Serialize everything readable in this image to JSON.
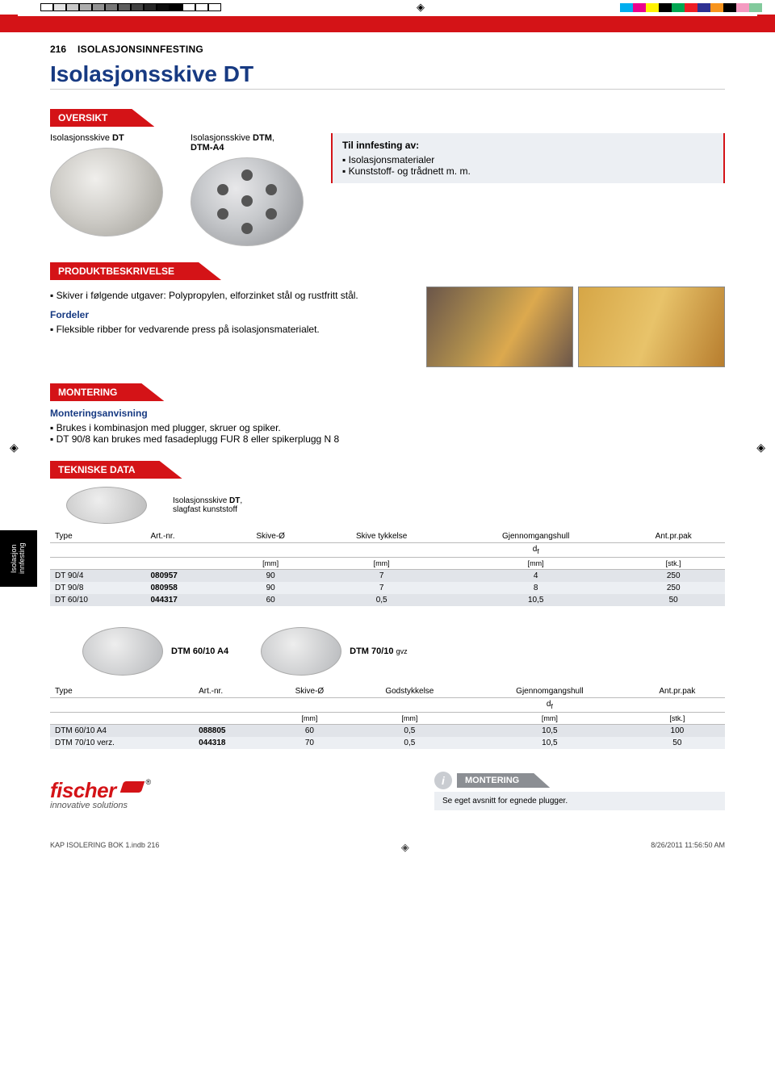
{
  "reg_swatches_gray": [
    "#ffffff",
    "#e3e3e3",
    "#c8c8c8",
    "#adadad",
    "#929292",
    "#777777",
    "#5c5c5c",
    "#414141",
    "#262626",
    "#0b0b0b",
    "#000000",
    "#ffffff",
    "#ffffff",
    "#ffffff"
  ],
  "reg_swatches_color": [
    "#00aeef",
    "#ec008c",
    "#fff200",
    "#000000",
    "#00a651",
    "#ed1c24",
    "#2e3192",
    "#f7941e",
    "#000000",
    "#f49ac1",
    "#82ca9c",
    "#ffffff"
  ],
  "page": {
    "num": "216",
    "cat": "ISOLASJONSINNFESTING"
  },
  "title": "Isolasjonsskive DT",
  "oversikt": {
    "heading": "OVERSIKT",
    "col1_label_a": "Isolasjonsskive ",
    "col1_label_b": "DT",
    "col2_label_a": "Isolasjonsskive ",
    "col2_label_b": "DTM",
    "col2_label_c": ",",
    "col2_line2": "DTM-A4",
    "info_title": "Til innfesting av:",
    "info_items": [
      "Isolasjonsmaterialer",
      "Kunststoff- og trådnett m. m."
    ]
  },
  "prodbesk": {
    "heading": "PRODUKTBESKRIVELSE",
    "items": [
      "Skiver i følgende utgaver: Polypropylen, elforzinket stål og rustfritt stål."
    ],
    "fordeler_title": "Fordeler",
    "fordeler_items": [
      "Fleksible ribber for vedvarende press på isolasjonsmaterialet."
    ]
  },
  "montering": {
    "heading": "MONTERING",
    "sub": "Monteringsanvisning",
    "items": [
      "Brukes i kombinasjon med plugger, skruer og spiker.",
      "DT 90/8 kan brukes med fasadeplugg FUR 8 eller spikerplugg N 8"
    ]
  },
  "teknisk": {
    "heading": "TEKNISKE DATA",
    "caption_a": "Isolasjonsskive ",
    "caption_b": "DT",
    "caption_c": ",",
    "caption_line2": "slagfast kunststoff"
  },
  "sidetab": "Isolasjon innfesting",
  "table1": {
    "columns": [
      "Type",
      "Art.-nr.",
      "Skive-Ø",
      "Skive tykkelse",
      "Gjennomgangshull",
      "Ant.pr.pak"
    ],
    "sub": [
      "",
      "",
      "",
      "",
      "d_f",
      ""
    ],
    "units": [
      "",
      "",
      "[mm]",
      "[mm]",
      "[mm]",
      "[stk.]"
    ],
    "rows": [
      [
        "DT 90/4",
        "080957",
        "90",
        "7",
        "4",
        "250"
      ],
      [
        "DT 90/8",
        "080958",
        "90",
        "7",
        "8",
        "250"
      ],
      [
        "DT 60/10",
        "044317",
        "60",
        "0,5",
        "10,5",
        "50"
      ]
    ]
  },
  "pair": {
    "a": "DTM 60/10 A4",
    "b_a": "DTM 70/10 ",
    "b_b": "gvz"
  },
  "table2": {
    "columns": [
      "Type",
      "Art.-nr.",
      "Skive-Ø",
      "Godstykkelse",
      "Gjennomgangshull",
      "Ant.pr.pak"
    ],
    "sub": [
      "",
      "",
      "",
      "",
      "d_f",
      ""
    ],
    "units": [
      "",
      "",
      "[mm]",
      "[mm]",
      "[mm]",
      "[stk.]"
    ],
    "rows": [
      [
        "DTM 60/10 A4",
        "088805",
        "60",
        "0,5",
        "10,5",
        "100"
      ],
      [
        "DTM 70/10 verz.",
        "044318",
        "70",
        "0,5",
        "10,5",
        "50"
      ]
    ]
  },
  "brand": {
    "name": "fischer",
    "tagline": "innovative solutions"
  },
  "footer_mont": {
    "heading": "MONTERING",
    "text": "Se eget avsnitt for egnede plugger."
  },
  "docinfo": {
    "left": "KAP ISOLERING BOK 1.indb   216",
    "right": "8/26/2011   11:56:50 AM"
  }
}
